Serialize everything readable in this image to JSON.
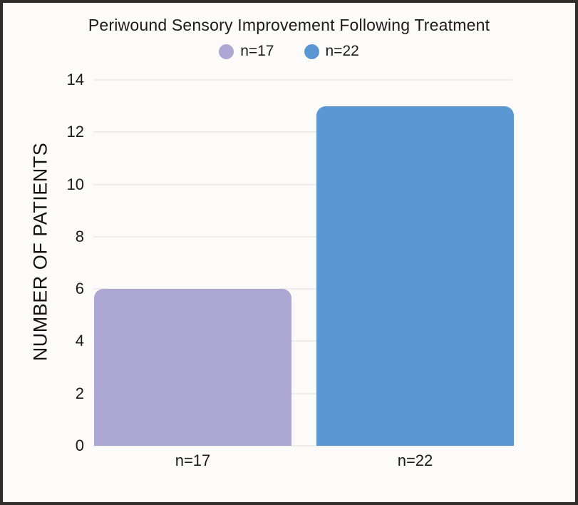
{
  "frame": {
    "background": "#fcfbfa",
    "border_color": "#2f2e2d"
  },
  "chart_data": {
    "type": "bar",
    "title": "Periwound Sensory Improvement Following Treatment",
    "categories": [
      "n=17",
      "n=22"
    ],
    "values": [
      6,
      13
    ],
    "bar_colors": [
      "#ada7d3",
      "#5b97d3"
    ],
    "xlabel": "",
    "ylabel": "NUMBER OF PATIENTS",
    "ylim": [
      0,
      14
    ],
    "yticks": [
      0,
      2,
      4,
      6,
      8,
      10,
      12,
      14
    ],
    "grid": true,
    "gridline_color": "#ededed",
    "text_color": "#1c1c1c",
    "legend": {
      "position": "top",
      "entries": [
        {
          "label": "n=17",
          "color": "#ada7d3"
        },
        {
          "label": "n=22",
          "color": "#5b97d3"
        }
      ]
    }
  }
}
